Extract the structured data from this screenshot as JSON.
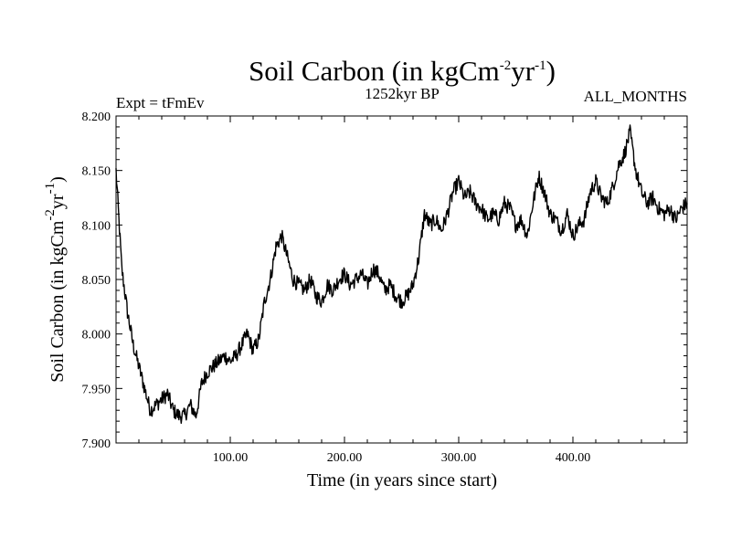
{
  "chart_data": {
    "type": "line",
    "title": "Soil Carbon (in kgCm",
    "title_sup1": "-2",
    "title_mid": "yr",
    "title_sup2": "-1",
    "title_end": ")",
    "experiment_label": "Expt = tFmEv",
    "period_label": "1252kyr BP",
    "months_label": "ALL_MONTHS",
    "xlabel": "Time (in years since start)",
    "ylabel": "Soil Carbon (in kgCm",
    "ylabel_sup1": "-2",
    "ylabel_mid": "yr",
    "ylabel_sup2": "-1",
    "ylabel_end": ")",
    "xlim": [
      0,
      500
    ],
    "ylim": [
      7.9,
      8.2
    ],
    "x_ticks": [
      100,
      200,
      300,
      400
    ],
    "x_tick_labels": [
      "100.00",
      "200.00",
      "300.00",
      "400.00"
    ],
    "y_ticks": [
      7.9,
      7.95,
      8.0,
      8.05,
      8.1,
      8.15,
      8.2
    ],
    "y_tick_labels": [
      "7.900",
      "7.950",
      "8.000",
      "8.050",
      "8.100",
      "8.150",
      "8.200"
    ],
    "series": [
      {
        "name": "Soil Carbon",
        "color": "#000000",
        "x": [
          0,
          5,
          10,
          15,
          20,
          25,
          30,
          35,
          40,
          45,
          50,
          55,
          60,
          65,
          70,
          75,
          80,
          85,
          90,
          95,
          100,
          105,
          110,
          115,
          120,
          125,
          130,
          135,
          140,
          145,
          150,
          155,
          160,
          165,
          170,
          175,
          180,
          185,
          190,
          195,
          200,
          205,
          210,
          215,
          220,
          225,
          230,
          235,
          240,
          245,
          250,
          255,
          260,
          265,
          270,
          275,
          280,
          285,
          290,
          295,
          300,
          305,
          310,
          315,
          320,
          325,
          330,
          335,
          340,
          345,
          350,
          355,
          360,
          365,
          370,
          375,
          380,
          385,
          390,
          395,
          400,
          405,
          410,
          415,
          420,
          425,
          430,
          435,
          440,
          445,
          450,
          455,
          460,
          465,
          470,
          475,
          480,
          485,
          490,
          495,
          500
        ],
        "values": [
          8.15,
          8.06,
          8.02,
          7.99,
          7.97,
          7.95,
          7.93,
          7.935,
          7.94,
          7.945,
          7.93,
          7.925,
          7.925,
          7.935,
          7.925,
          7.955,
          7.965,
          7.97,
          7.975,
          7.98,
          7.975,
          7.98,
          7.99,
          8.0,
          7.985,
          7.995,
          8.03,
          8.05,
          8.08,
          8.09,
          8.07,
          8.05,
          8.045,
          8.04,
          8.05,
          8.035,
          8.03,
          8.045,
          8.04,
          8.05,
          8.055,
          8.045,
          8.05,
          8.055,
          8.045,
          8.06,
          8.055,
          8.04,
          8.045,
          8.035,
          8.03,
          8.035,
          8.045,
          8.07,
          8.11,
          8.1,
          8.105,
          8.095,
          8.11,
          8.13,
          8.14,
          8.125,
          8.13,
          8.12,
          8.115,
          8.105,
          8.11,
          8.105,
          8.12,
          8.115,
          8.1,
          8.105,
          8.09,
          8.12,
          8.145,
          8.13,
          8.11,
          8.105,
          8.095,
          8.11,
          8.09,
          8.1,
          8.105,
          8.13,
          8.14,
          8.125,
          8.12,
          8.135,
          8.155,
          8.165,
          8.185,
          8.15,
          8.13,
          8.12,
          8.125,
          8.115,
          8.11,
          8.115,
          8.105,
          8.115,
          8.12
        ]
      }
    ]
  }
}
